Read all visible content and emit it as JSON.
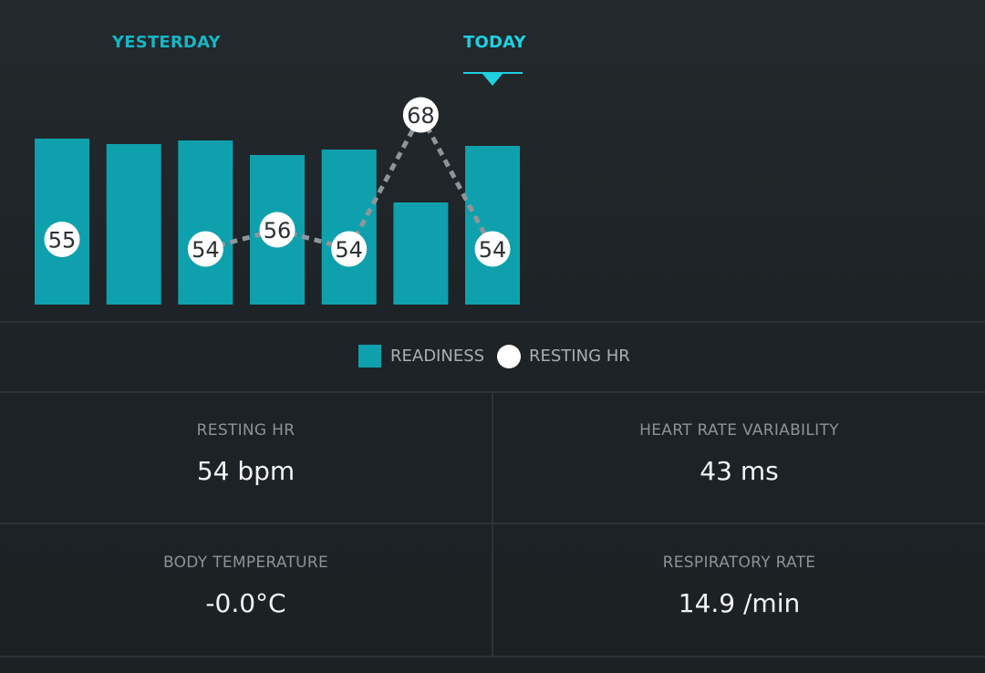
{
  "tabs": {
    "yesterday": "YESTERDAY",
    "today": "TODAY"
  },
  "chart_data": {
    "type": "bar",
    "categories": [
      "",
      "",
      "",
      "",
      "",
      "",
      ""
    ],
    "series": [
      {
        "name": "READINESS",
        "values": [
          91,
          88,
          90,
          82,
          85,
          56,
          87
        ]
      },
      {
        "name": "RESTING HR",
        "values": [
          55,
          null,
          54,
          56,
          54,
          68,
          54
        ]
      }
    ],
    "colors": {
      "readiness": "#0fa0ad",
      "resting_hr": "#ffffff",
      "line": "#8f9699"
    },
    "ylim": [
      0,
      100
    ],
    "grid": false,
    "legend_position": "bottom-center"
  },
  "legend": {
    "readiness_label": "READINESS",
    "resting_hr_label": "RESTING HR"
  },
  "metrics": {
    "resting_hr": {
      "label": "RESTING HR",
      "value": "54 bpm"
    },
    "hrv": {
      "label": "HEART RATE VARIABILITY",
      "value": "43 ms"
    },
    "body_temp": {
      "label": "BODY TEMPERATURE",
      "value": "-0.0°C"
    },
    "resp_rate": {
      "label": "RESPIRATORY RATE",
      "value": "14.9 /min"
    }
  }
}
